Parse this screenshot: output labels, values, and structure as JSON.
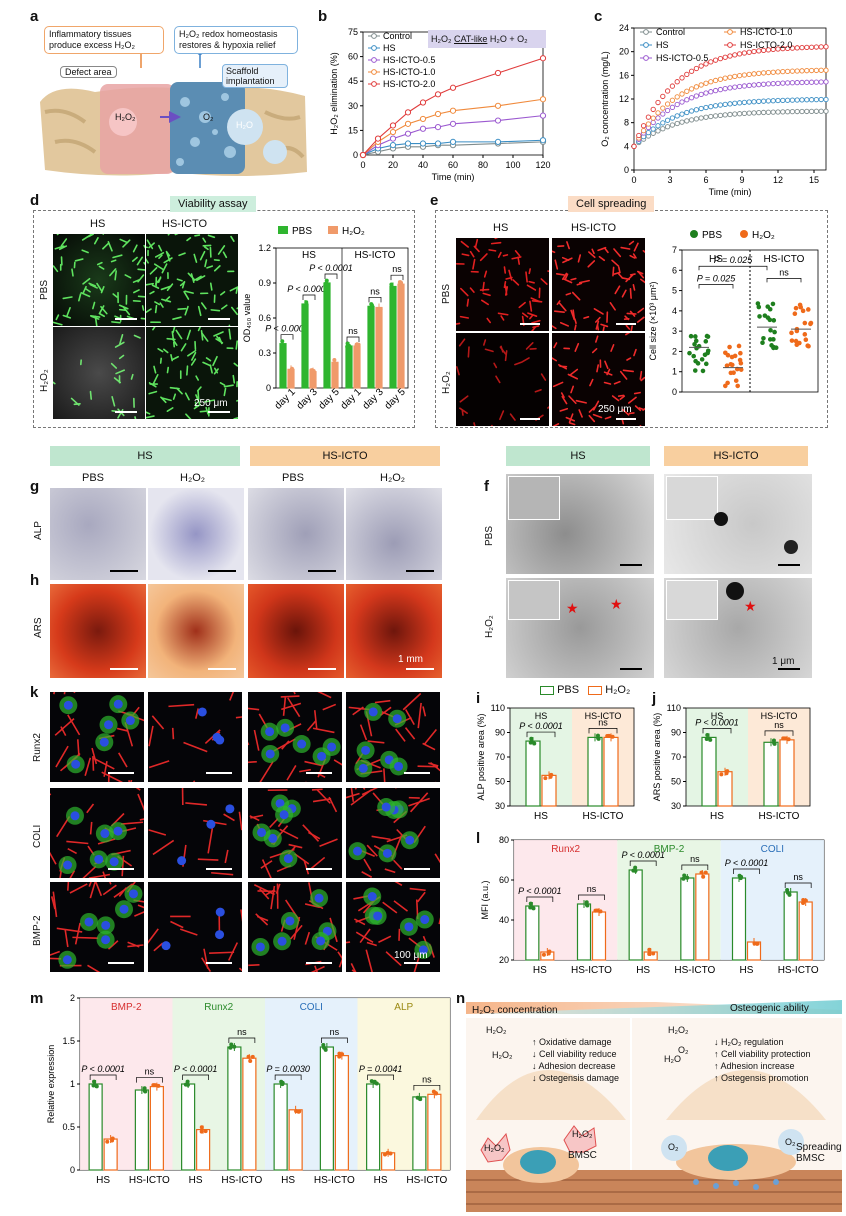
{
  "panels": {
    "a": {
      "letter": "a",
      "box1": "Inflammatory tissues produce excess H₂O₂",
      "box2": "H₂O₂ redox homeostasis restores & hypoxia relief",
      "defect": "Defect area",
      "scaffold": "Scaffold implantation",
      "h2o2": "H₂O₂",
      "o2": "O₂",
      "h2o": "H₂O"
    },
    "b": {
      "letter": "b",
      "reaction_label": "CAT-like",
      "reaction_left": "H₂O₂",
      "reaction_right": "H₂O + O₂"
    },
    "c": {
      "letter": "c"
    },
    "d": {
      "letter": "d",
      "title": "Viability assay",
      "col1": "HS",
      "col2": "HS-ICTO",
      "row1": "PBS",
      "row2": "H₂O₂",
      "scale": "250 μm"
    },
    "e": {
      "letter": "e",
      "title": "Cell spreading",
      "col1": "HS",
      "col2": "HS-ICTO",
      "row1": "PBS",
      "row2": "H₂O₂",
      "scale": "250 μm"
    },
    "g": {
      "letter": "g",
      "row": "ALP"
    },
    "h": {
      "letter": "h",
      "row": "ARS",
      "scale": "1 mm"
    },
    "ghdr": {
      "hs": "HS",
      "icto": "HS-ICTO",
      "c1": "PBS",
      "c2": "H₂O₂",
      "c3": "PBS",
      "c4": "H₂O₂"
    },
    "f": {
      "letter": "f",
      "hs": "HS",
      "icto": "HS-ICTO",
      "row1": "PBS",
      "row2": "H₂O₂",
      "scale": "1 μm"
    },
    "k": {
      "letter": "k",
      "row1": "Runx2",
      "row2": "COLI",
      "row3": "BMP-2",
      "scale": "100 μm"
    },
    "i": {
      "letter": "i"
    },
    "j": {
      "letter": "j"
    },
    "l": {
      "letter": "l"
    },
    "m": {
      "letter": "m"
    },
    "n": {
      "letter": "n",
      "h2o2_conc": "H₂O₂ concentration",
      "osteo": "Osteogenic ability",
      "left_items": [
        "↑ Oxidative damage",
        "↓ Cell viability reduce",
        "↓ Adhesion decrease",
        "↓ Ostegensis damage"
      ],
      "right_items": [
        "↓ H₂O₂ regulation",
        "↑ Cell viability protection",
        "↑ Adhesion increase",
        "↑ Ostegensis promotion"
      ],
      "bmsc": "BMSC",
      "spreading": "Spreading BMSC",
      "h2o2": "H₂O₂",
      "o2": "O₂",
      "h2o": "H₂O"
    }
  },
  "chart_data": [
    {
      "id": "b",
      "type": "line",
      "xlabel": "Time (min)",
      "ylabel": "H₂O₂ elimination (%)",
      "xlim": [
        0,
        120
      ],
      "ylim": [
        0,
        75
      ],
      "xticks": [
        0,
        20,
        40,
        60,
        80,
        100,
        120
      ],
      "yticks": [
        0,
        15,
        30,
        45,
        60,
        75
      ],
      "x": [
        0,
        10,
        20,
        30,
        40,
        50,
        60,
        90,
        120
      ],
      "series": [
        {
          "name": "Control",
          "color": "#7f8c8d",
          "values": [
            0,
            2,
            4,
            5,
            5,
            6,
            6,
            7,
            8
          ]
        },
        {
          "name": "HS",
          "color": "#3b8ec4",
          "values": [
            0,
            4,
            6,
            7,
            7,
            7,
            8,
            8,
            9
          ]
        },
        {
          "name": "HS-ICTO-0.5",
          "color": "#9b59d0",
          "values": [
            0,
            6,
            10,
            13,
            16,
            17,
            19,
            21,
            24
          ]
        },
        {
          "name": "HS-ICTO-1.0",
          "color": "#f08a3c",
          "values": [
            0,
            8,
            14,
            19,
            22,
            25,
            27,
            30,
            34
          ]
        },
        {
          "name": "HS-ICTO-2.0",
          "color": "#e03c3c",
          "values": [
            0,
            10,
            18,
            26,
            32,
            37,
            41,
            50,
            59
          ]
        }
      ]
    },
    {
      "id": "c",
      "type": "line",
      "xlabel": "Time (min)",
      "ylabel": "O₂ concentration (mg/L)",
      "xlim": [
        0,
        16
      ],
      "ylim": [
        0,
        24
      ],
      "xticks": [
        0,
        3,
        6,
        9,
        12,
        15
      ],
      "yticks": [
        0,
        4,
        8,
        12,
        16,
        20,
        24
      ],
      "series": [
        {
          "name": "Control",
          "color": "#7f8c8d",
          "start": 4,
          "end": 10
        },
        {
          "name": "HS",
          "color": "#3b8ec4",
          "start": 4,
          "end": 12
        },
        {
          "name": "HS-ICTO-0.5",
          "color": "#9b59d0",
          "start": 4,
          "end": 15
        },
        {
          "name": "HS-ICTO-1.0",
          "color": "#f08a3c",
          "start": 4,
          "end": 17
        },
        {
          "name": "HS-ICTO-2.0",
          "color": "#e03c3c",
          "start": 4,
          "end": 21
        }
      ]
    },
    {
      "id": "d",
      "type": "bar",
      "ylabel": "OD₄₅₀ value",
      "ylim": [
        0,
        1.2
      ],
      "yticks": [
        0,
        0.3,
        0.6,
        0.9,
        1.2
      ],
      "groups": [
        "HS",
        "HS-ICTO"
      ],
      "categories": [
        "day 1",
        "day 3",
        "day 5",
        "day 1",
        "day 3",
        "day 5"
      ],
      "series": [
        {
          "name": "PBS",
          "color": "#2fb52f",
          "values": [
            0.38,
            0.72,
            0.9,
            0.36,
            0.7,
            0.87
          ]
        },
        {
          "name": "H₂O₂",
          "color": "#f09a6a",
          "values": [
            0.16,
            0.14,
            0.22,
            0.36,
            0.69,
            0.89
          ]
        }
      ],
      "annotations": [
        "P < 0.0001",
        "P < 0.0001",
        "P < 0.0001",
        "ns",
        "ns",
        "ns"
      ]
    },
    {
      "id": "e",
      "type": "scatter",
      "ylabel": "Cell size (×10³ μm²)",
      "ylim": [
        0,
        7
      ],
      "yticks": [
        0,
        1,
        2,
        3,
        4,
        5,
        6,
        7
      ],
      "groups": [
        "HS",
        "HS-ICTO"
      ],
      "series": [
        {
          "name": "PBS",
          "color": "#1e7f1e",
          "means": [
            2.2,
            3.2
          ]
        },
        {
          "name": "H₂O₂",
          "color": "#ef6a1a",
          "means": [
            1.2,
            3.1
          ]
        }
      ],
      "annotations": [
        "P = 0.025",
        "P = 0.025",
        "ns"
      ]
    },
    {
      "id": "i",
      "type": "bar",
      "ylabel": "ALP positive area (%)",
      "ylim": [
        30,
        110
      ],
      "yticks": [
        30,
        50,
        70,
        90,
        110
      ],
      "categories": [
        "HS",
        "HS-ICTO"
      ],
      "series": [
        {
          "name": "PBS",
          "color": "#2a8a2a",
          "values": [
            83,
            86
          ]
        },
        {
          "name": "H₂O₂",
          "color": "#ef6a1a",
          "values": [
            55,
            86
          ]
        }
      ],
      "annotations": [
        "P < 0.0001",
        "ns"
      ]
    },
    {
      "id": "j",
      "type": "bar",
      "ylabel": "ARS positive area (%)",
      "ylim": [
        30,
        110
      ],
      "yticks": [
        30,
        50,
        70,
        90,
        110
      ],
      "categories": [
        "HS",
        "HS-ICTO"
      ],
      "series": [
        {
          "name": "PBS",
          "color": "#2a8a2a",
          "values": [
            86,
            82
          ]
        },
        {
          "name": "H₂O₂",
          "color": "#ef6a1a",
          "values": [
            58,
            84
          ]
        }
      ],
      "annotations": [
        "P < 0.0001",
        "ns"
      ]
    },
    {
      "id": "l",
      "type": "bar",
      "ylabel": "MFI (a.u.)",
      "ylim": [
        20,
        80
      ],
      "yticks": [
        20,
        40,
        60,
        80
      ],
      "sections": [
        "Runx2",
        "BMP-2",
        "COLI"
      ],
      "categories": [
        "HS",
        "HS-ICTO",
        "HS",
        "HS-ICTO",
        "HS",
        "HS-ICTO"
      ],
      "series": [
        {
          "name": "PBS",
          "color": "#2a8a2a",
          "values": [
            47,
            48,
            65,
            61,
            61,
            54
          ]
        },
        {
          "name": "H₂O₂",
          "color": "#ef6a1a",
          "values": [
            24,
            44,
            24,
            63,
            29,
            49
          ]
        }
      ],
      "annotations": [
        "P < 0.0001",
        "ns",
        "P < 0.0001",
        "ns",
        "P < 0.0001",
        "ns"
      ]
    },
    {
      "id": "m",
      "type": "bar",
      "ylabel": "Relative expression",
      "ylim": [
        0,
        2.0
      ],
      "yticks": [
        0.0,
        0.5,
        1.0,
        1.5,
        2.0
      ],
      "sections": [
        "BMP-2",
        "Runx2",
        "COLI",
        "ALP"
      ],
      "categories": [
        "HS",
        "HS-ICTO",
        "HS",
        "HS-ICTO",
        "HS",
        "HS-ICTO",
        "HS",
        "HS-ICTO"
      ],
      "series": [
        {
          "name": "PBS",
          "color": "#2a8a2a",
          "values": [
            1.0,
            0.93,
            1.0,
            1.43,
            1.0,
            1.43,
            1.0,
            0.85
          ]
        },
        {
          "name": "H₂O₂",
          "color": "#ef6a1a",
          "values": [
            0.36,
            0.97,
            0.47,
            1.3,
            0.7,
            1.33,
            0.2,
            0.88
          ]
        }
      ],
      "annotations": [
        "P < 0.0001",
        "ns",
        "P < 0.0001",
        "ns",
        "P = 0.0030",
        "ns",
        "P = 0.0041",
        "ns"
      ]
    }
  ],
  "legend": {
    "pbs": "PBS",
    "h2o2": "H₂O₂"
  }
}
